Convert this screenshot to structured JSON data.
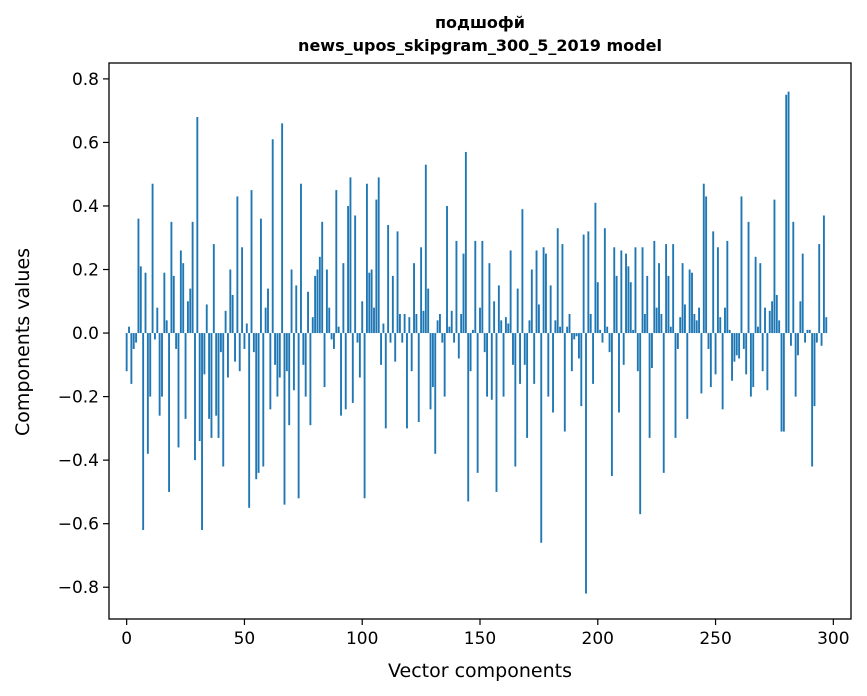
{
  "chart_data": {
    "type": "bar",
    "title_line1": "подшофй",
    "title_line2": "news_upos_skipgram_300_5_2019 model",
    "xlabel": "Vector components",
    "ylabel": "Components values",
    "xlim": [
      -7.5,
      307.5
    ],
    "ylim": [
      -0.9,
      0.85
    ],
    "x_ticks": [
      0,
      50,
      100,
      150,
      200,
      250,
      300
    ],
    "y_ticks": [
      -0.8,
      -0.6,
      -0.4,
      -0.2,
      0.0,
      0.2,
      0.4,
      0.6,
      0.8
    ],
    "x_tick_labels": [
      "0",
      "50",
      "100",
      "150",
      "200",
      "250",
      "300"
    ],
    "y_tick_labels": [
      "−0.8",
      "−0.6",
      "−0.4",
      "−0.2",
      "0.0",
      "0.2",
      "0.4",
      "0.6",
      "0.8"
    ],
    "bar_color": "#1f77b4",
    "grid": false,
    "values": [
      -0.12,
      0.02,
      -0.16,
      -0.05,
      -0.03,
      0.36,
      0.21,
      -0.62,
      0.19,
      -0.38,
      -0.2,
      0.47,
      -0.02,
      0.08,
      -0.26,
      -0.2,
      0.19,
      0.04,
      -0.5,
      0.35,
      0.18,
      -0.05,
      -0.36,
      0.26,
      0.22,
      -0.27,
      0.1,
      0.14,
      0.35,
      -0.4,
      0.68,
      -0.34,
      -0.62,
      -0.13,
      0.09,
      -0.27,
      -0.33,
      0.28,
      -0.26,
      -0.33,
      -0.06,
      -0.42,
      0.07,
      -0.14,
      0.2,
      0.12,
      -0.09,
      0.43,
      -0.12,
      0.27,
      -0.05,
      0.03,
      -0.55,
      0.45,
      -0.06,
      -0.46,
      -0.44,
      0.36,
      -0.42,
      0.08,
      0.14,
      -0.24,
      0.61,
      -0.1,
      -0.2,
      -0.14,
      0.66,
      -0.54,
      -0.12,
      -0.29,
      0.2,
      -0.18,
      0.15,
      -0.52,
      0.47,
      -0.1,
      -0.2,
      0.13,
      -0.29,
      0.05,
      0.18,
      0.2,
      0.24,
      0.35,
      -0.17,
      0.2,
      0.08,
      -0.02,
      -0.05,
      0.45,
      0.02,
      -0.26,
      0.22,
      -0.24,
      0.4,
      0.49,
      -0.22,
      0.37,
      -0.03,
      -0.14,
      0.1,
      -0.52,
      0.47,
      0.19,
      0.2,
      0.08,
      0.42,
      0.49,
      -0.1,
      0.03,
      -0.3,
      0.34,
      -0.03,
      0.18,
      -0.09,
      0.32,
      0.06,
      -0.03,
      0.06,
      -0.3,
      0.05,
      -0.12,
      0.22,
      0.06,
      -0.28,
      0.27,
      0.07,
      0.53,
      0.14,
      -0.24,
      -0.17,
      -0.38,
      0.04,
      0.06,
      -0.03,
      -0.2,
      0.4,
      0.02,
      0.07,
      -0.03,
      0.29,
      -0.08,
      0.06,
      0.25,
      0.57,
      -0.53,
      -0.12,
      0.01,
      0.29,
      -0.44,
      0.08,
      0.29,
      -0.06,
      -0.2,
      0.22,
      -0.21,
      0.1,
      -0.5,
      0.15,
      0.04,
      -0.2,
      0.05,
      0.03,
      0.26,
      -0.1,
      -0.42,
      0.14,
      -0.16,
      0.39,
      -0.1,
      -0.33,
      0.04,
      0.2,
      -0.16,
      0.26,
      0.09,
      -0.66,
      0.27,
      0.25,
      -0.2,
      0.15,
      -0.25,
      0.04,
      0.33,
      0.02,
      0.28,
      -0.31,
      0.02,
      0.06,
      -0.12,
      -0.02,
      -0.01,
      -0.08,
      -0.23,
      0.31,
      -0.82,
      0.32,
      0.06,
      -0.16,
      0.41,
      0.16,
      0.01,
      -0.03,
      0.33,
      0.02,
      -0.06,
      -0.45,
      0.27,
      0.18,
      -0.25,
      0.26,
      -0.1,
      0.25,
      0.21,
      0.16,
      0.01,
      0.27,
      -0.12,
      -0.57,
      0.27,
      0.06,
      0.18,
      -0.33,
      -0.11,
      0.29,
      0.08,
      0.22,
      0.06,
      -0.44,
      0.28,
      0.18,
      0.02,
      0.28,
      -0.33,
      -0.05,
      0.05,
      0.22,
      0.09,
      -0.27,
      0.2,
      0.19,
      0.06,
      0.04,
      0.08,
      -0.19,
      0.47,
      0.43,
      -0.05,
      -0.17,
      0.32,
      -0.13,
      0.27,
      0.05,
      -0.24,
      0.08,
      0.29,
      0.01,
      -0.15,
      -0.09,
      -0.07,
      -0.08,
      0.43,
      -0.05,
      -0.13,
      0.35,
      -0.2,
      -0.17,
      0.24,
      0.02,
      0.22,
      -0.12,
      0.08,
      -0.18,
      0.07,
      0.1,
      0.42,
      0.12,
      0.04,
      -0.31,
      -0.31,
      0.75,
      0.76,
      -0.04,
      0.35,
      -0.2,
      -0.07,
      0.1,
      0.25,
      -0.03,
      0.01,
      0.01,
      -0.42,
      -0.23,
      -0.03,
      0.28,
      -0.04,
      0.37,
      0.05
    ]
  }
}
